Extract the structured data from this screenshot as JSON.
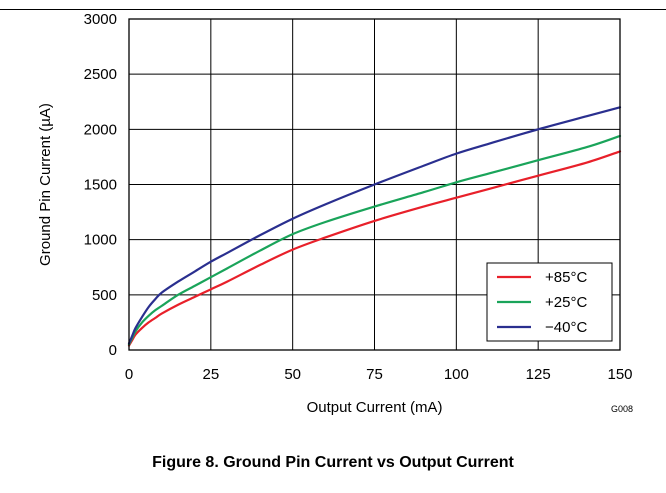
{
  "caption": "Figure 8. Ground Pin Current vs Output Current",
  "figure_code": "G008",
  "chart_data": {
    "type": "line",
    "title": "",
    "xlabel": "Output Current (mA)",
    "ylabel": "Ground Pin Current (µA)",
    "xlim": [
      0,
      150
    ],
    "ylim": [
      0,
      3000
    ],
    "xticks": [
      0,
      25,
      50,
      75,
      100,
      125,
      150
    ],
    "yticks": [
      0,
      500,
      1000,
      1500,
      2000,
      2500,
      3000
    ],
    "grid": true,
    "legend_position": "bottom-right",
    "series": [
      {
        "name": "+85°C",
        "color": "#e8202a",
        "x": [
          0,
          1,
          2,
          4,
          6,
          8,
          10,
          15,
          20,
          25,
          30,
          40,
          50,
          60,
          75,
          90,
          100,
          110,
          125,
          140,
          150
        ],
        "y": [
          40,
          90,
          140,
          200,
          250,
          290,
          330,
          410,
          480,
          550,
          620,
          770,
          910,
          1020,
          1170,
          1300,
          1380,
          1460,
          1580,
          1700,
          1800
        ]
      },
      {
        "name": "+25°C",
        "color": "#1aa45a",
        "x": [
          0,
          1,
          2,
          4,
          6,
          8,
          10,
          15,
          20,
          25,
          30,
          40,
          50,
          60,
          75,
          90,
          100,
          110,
          125,
          140,
          150
        ],
        "y": [
          50,
          110,
          170,
          250,
          310,
          360,
          400,
          500,
          580,
          660,
          740,
          900,
          1050,
          1160,
          1300,
          1430,
          1520,
          1600,
          1720,
          1840,
          1940
        ]
      },
      {
        "name": "−40°C",
        "color": "#2a2f8f",
        "x": [
          0,
          1,
          2,
          4,
          6,
          8,
          10,
          15,
          20,
          25,
          30,
          40,
          50,
          60,
          75,
          90,
          100,
          110,
          125,
          140,
          150
        ],
        "y": [
          60,
          130,
          200,
          300,
          390,
          460,
          520,
          620,
          710,
          800,
          880,
          1040,
          1190,
          1320,
          1500,
          1670,
          1780,
          1870,
          2000,
          2120,
          2200
        ]
      }
    ]
  }
}
